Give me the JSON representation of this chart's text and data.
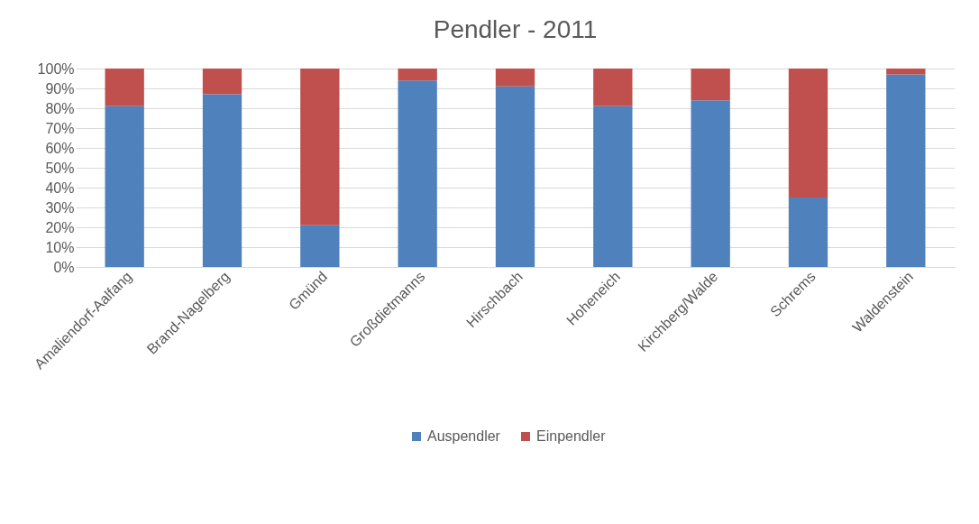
{
  "chart_data": {
    "type": "bar",
    "title": "Pendler - 2011",
    "stacked": true,
    "categories": [
      "Amaliendorf-Aalfang",
      "Brand-Nagelberg",
      "Gmünd",
      "Großdietmanns",
      "Hirschbach",
      "Hoheneich",
      "Kirchberg/Walde",
      "Schrems",
      "Waldenstein"
    ],
    "series": [
      {
        "name": "Auspendler",
        "color": "#4f81bd",
        "values": [
          81,
          87,
          21,
          94,
          91,
          81,
          84,
          35,
          97
        ]
      },
      {
        "name": "Einpendler",
        "color": "#c0504d",
        "values": [
          19,
          13,
          79,
          6,
          9,
          19,
          16,
          65,
          3
        ]
      }
    ],
    "ylim": [
      0,
      100
    ],
    "yticks": [
      {
        "value": 0,
        "label": "0%"
      },
      {
        "value": 10,
        "label": "10%"
      },
      {
        "value": 20,
        "label": "20%"
      },
      {
        "value": 30,
        "label": "30%"
      },
      {
        "value": 40,
        "label": "40%"
      },
      {
        "value": 50,
        "label": "50%"
      },
      {
        "value": 60,
        "label": "60%"
      },
      {
        "value": 70,
        "label": "70%"
      },
      {
        "value": 80,
        "label": "80%"
      },
      {
        "value": 90,
        "label": "90%"
      },
      {
        "value": 100,
        "label": "100%"
      }
    ],
    "grid": "y",
    "legend": "bottom"
  }
}
